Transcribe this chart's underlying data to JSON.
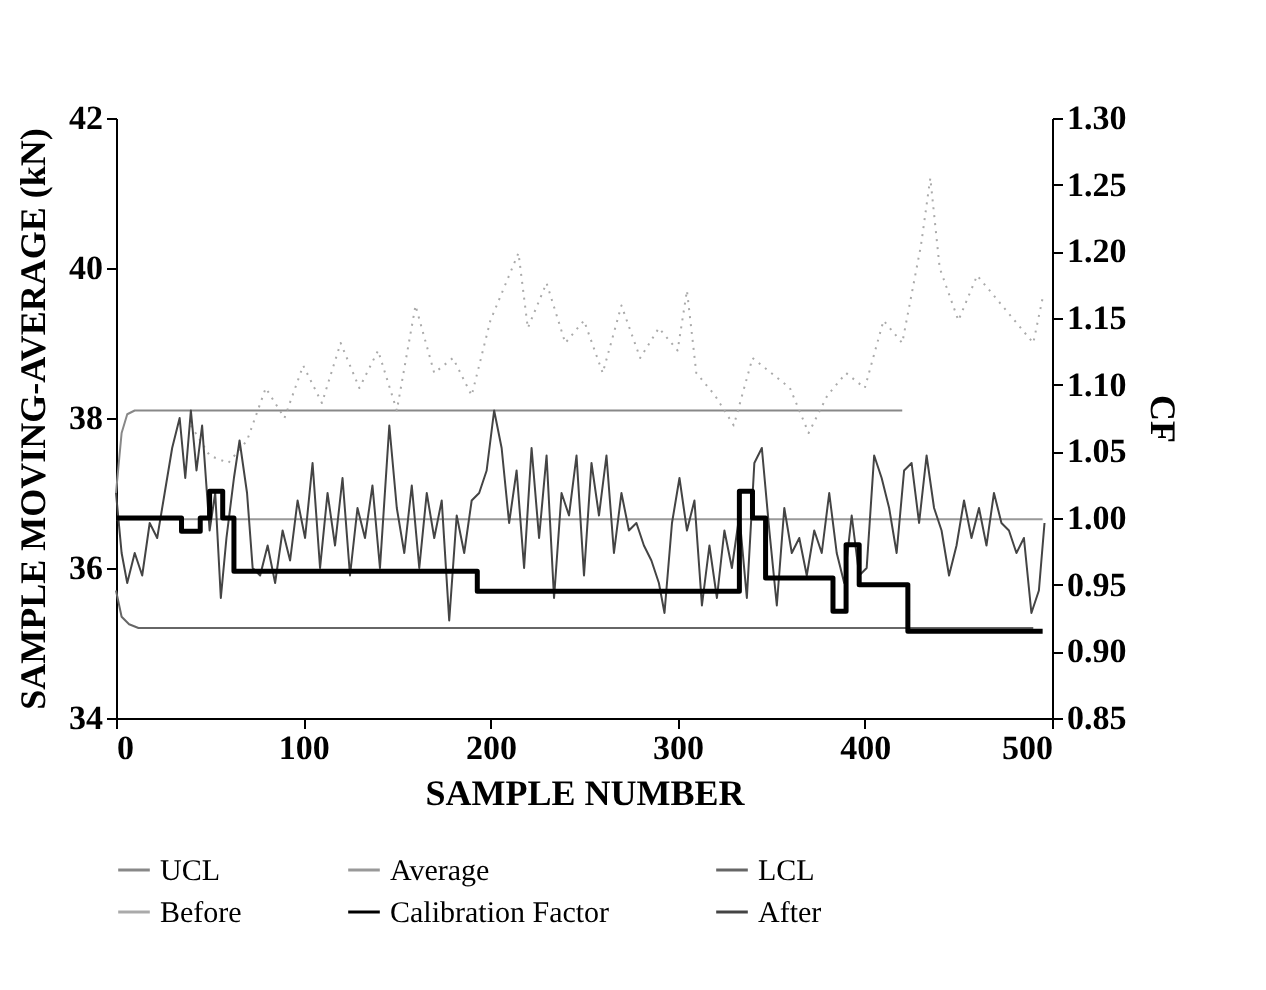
{
  "chart_data": {
    "type": "line",
    "xlabel": "SAMPLE NUMBER",
    "ylabel": "SAMPLE MOVING-AVERAGE (kN)",
    "y2label": "CF",
    "xlim": [
      0,
      500
    ],
    "xticks": [
      0,
      100,
      200,
      300,
      400,
      500
    ],
    "ylim": [
      34,
      42
    ],
    "yticks": [
      34,
      36,
      38,
      40,
      42
    ],
    "y2lim": [
      0.85,
      1.3
    ],
    "y2ticks": [
      {
        "value": 0.85,
        "label": "0.85"
      },
      {
        "value": 0.9,
        "label": "0.90"
      },
      {
        "value": 0.95,
        "label": "0.95"
      },
      {
        "value": 1.0,
        "label": "1.00"
      },
      {
        "value": 1.05,
        "label": "1.05"
      },
      {
        "value": 1.1,
        "label": "1.10"
      },
      {
        "value": 1.15,
        "label": "1.15"
      },
      {
        "value": 1.2,
        "label": "1.20"
      },
      {
        "value": 1.25,
        "label": "1.25"
      },
      {
        "value": 1.3,
        "label": "1.30"
      }
    ],
    "legend": "bottom",
    "marker": "none",
    "series": [
      {
        "name": "UCL",
        "color": "#888888",
        "x": [
          0,
          3,
          6,
          10,
          420
        ],
        "values": [
          37.0,
          37.8,
          38.05,
          38.1,
          38.1
        ]
      },
      {
        "name": "Average",
        "color": "#999999",
        "x": [
          0,
          495
        ],
        "values": [
          36.65,
          36.65
        ]
      },
      {
        "name": "LCL",
        "color": "#666666",
        "x": [
          0,
          3,
          7,
          12,
          490
        ],
        "values": [
          35.7,
          35.35,
          35.25,
          35.2,
          35.2
        ]
      },
      {
        "name": "Before",
        "color": "#aaaaaa",
        "line_style": "dotted",
        "x": [
          40,
          50,
          60,
          70,
          80,
          90,
          100,
          110,
          120,
          130,
          140,
          150,
          160,
          170,
          180,
          190,
          200,
          210,
          215,
          220,
          230,
          240,
          250,
          260,
          270,
          280,
          290,
          300,
          305,
          310,
          320,
          330,
          340,
          350,
          360,
          370,
          380,
          390,
          400,
          410,
          420,
          430,
          435,
          440,
          450,
          460,
          470,
          480,
          490,
          495
        ],
        "values": [
          37.9,
          37.5,
          37.4,
          37.7,
          38.4,
          38.0,
          38.7,
          38.2,
          39.0,
          38.4,
          38.9,
          38.1,
          39.5,
          38.6,
          38.8,
          38.3,
          39.3,
          39.9,
          40.2,
          39.2,
          39.8,
          39.0,
          39.3,
          38.6,
          39.5,
          38.8,
          39.2,
          38.9,
          39.7,
          38.6,
          38.3,
          37.9,
          38.8,
          38.6,
          38.4,
          37.8,
          38.3,
          38.6,
          38.4,
          39.3,
          39.0,
          40.3,
          41.2,
          40.0,
          39.3,
          39.9,
          39.6,
          39.3,
          39.0,
          39.6
        ]
      },
      {
        "name": "Calibration Factor",
        "type": "step",
        "axis": "y2",
        "color": "#000000",
        "x": [
          0,
          35,
          45,
          50,
          57,
          63,
          193,
          333,
          340,
          347,
          383,
          390,
          397,
          423,
          495
        ],
        "values": [
          1.0,
          0.99,
          1.0,
          1.02,
          1.0,
          0.96,
          0.945,
          1.02,
          1.0,
          0.955,
          0.93,
          0.98,
          0.95,
          0.915,
          0.915
        ]
      },
      {
        "name": "After",
        "color": "#444444",
        "x": [
          0,
          3,
          6,
          10,
          14,
          18,
          22,
          26,
          30,
          34,
          37,
          40,
          43,
          46,
          50,
          53,
          56,
          59,
          63,
          66,
          70,
          73,
          77,
          81,
          85,
          89,
          93,
          97,
          101,
          105,
          109,
          113,
          117,
          121,
          125,
          129,
          133,
          137,
          141,
          146,
          150,
          154,
          158,
          162,
          166,
          170,
          174,
          178,
          182,
          186,
          190,
          194,
          198,
          202,
          206,
          210,
          214,
          218,
          222,
          226,
          230,
          234,
          238,
          242,
          246,
          250,
          254,
          258,
          262,
          266,
          270,
          274,
          278,
          282,
          286,
          290,
          293,
          297,
          301,
          305,
          309,
          313,
          317,
          321,
          325,
          329,
          333,
          337,
          341,
          345,
          349,
          353,
          357,
          361,
          365,
          369,
          373,
          377,
          381,
          385,
          389,
          393,
          397,
          401,
          405,
          409,
          413,
          417,
          421,
          425,
          429,
          433,
          437,
          441,
          445,
          449,
          453,
          457,
          461,
          465,
          469,
          473,
          477,
          481,
          485,
          489,
          493,
          496
        ],
        "values": [
          37.0,
          36.2,
          35.8,
          36.2,
          35.9,
          36.6,
          36.4,
          37.0,
          37.6,
          38.0,
          37.2,
          38.1,
          37.3,
          37.9,
          36.5,
          37.0,
          35.6,
          36.4,
          37.2,
          37.7,
          37.0,
          36.0,
          35.9,
          36.3,
          35.8,
          36.5,
          36.1,
          36.9,
          36.4,
          37.4,
          36.0,
          37.0,
          36.3,
          37.2,
          35.9,
          36.8,
          36.4,
          37.1,
          36.0,
          37.9,
          36.8,
          36.2,
          37.1,
          36.0,
          37.0,
          36.4,
          36.9,
          35.3,
          36.7,
          36.2,
          36.9,
          37.0,
          37.3,
          38.1,
          37.6,
          36.6,
          37.3,
          36.0,
          37.6,
          36.4,
          37.5,
          35.6,
          37.0,
          36.7,
          37.5,
          35.9,
          37.4,
          36.7,
          37.5,
          36.2,
          37.0,
          36.5,
          36.6,
          36.3,
          36.1,
          35.8,
          35.4,
          36.6,
          37.2,
          36.5,
          36.9,
          35.5,
          36.3,
          35.6,
          36.5,
          36.0,
          36.7,
          35.6,
          37.4,
          37.6,
          36.5,
          35.5,
          36.8,
          36.2,
          36.4,
          35.9,
          36.5,
          36.2,
          37.0,
          36.2,
          35.8,
          36.7,
          35.9,
          36.0,
          37.5,
          37.2,
          36.8,
          36.2,
          37.3,
          37.4,
          36.6,
          37.5,
          36.8,
          36.5,
          35.9,
          36.3,
          36.9,
          36.4,
          36.8,
          36.3,
          37.0,
          36.6,
          36.5,
          36.2,
          36.4,
          35.4,
          35.7,
          36.6
        ]
      }
    ]
  }
}
